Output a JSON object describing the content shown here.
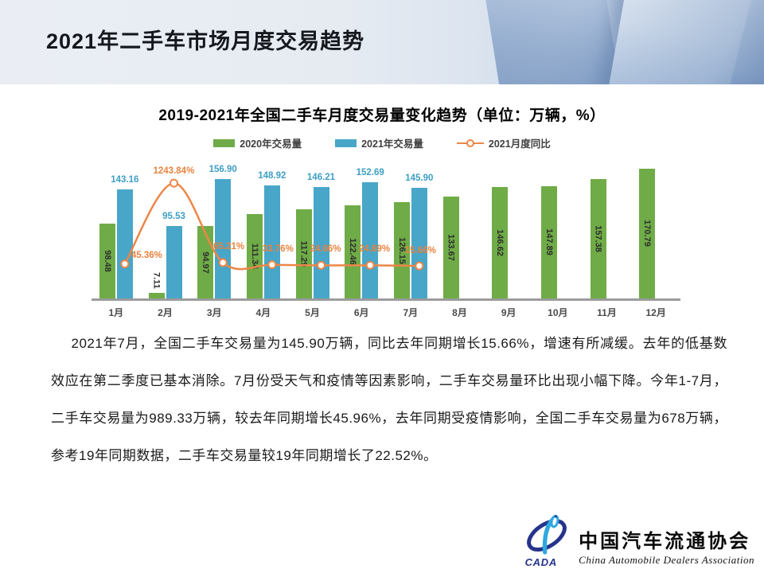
{
  "header": {
    "title": "2021年二手车市场月度交易趋势"
  },
  "chart": {
    "title": "2019-2021年全国二手车月度交易量变化趋势（单位：万辆，%）",
    "colors": {
      "green": "#6FAC47",
      "blue": "#48A6C8",
      "orange": "#ED8647",
      "blue_label": "#3D9FC4",
      "orange_label": "#E9823D",
      "axis": "#9C9C9C"
    }
  },
  "chart_data": {
    "type": "bar",
    "title": "2019-2021年全国二手车月度交易量变化趋势（单位：万辆，%）",
    "categories": [
      "1月",
      "2月",
      "3月",
      "4月",
      "5月",
      "6月",
      "7月",
      "8月",
      "9月",
      "10月",
      "11月",
      "12月"
    ],
    "series": [
      {
        "name": "2020年交易量",
        "type": "bar",
        "color": "#6FAC47",
        "values": [
          98.48,
          7.11,
          94.97,
          111.34,
          117.29,
          122.46,
          126.15,
          133.67,
          146.62,
          147.89,
          157.38,
          170.79
        ]
      },
      {
        "name": "2021年交易量",
        "type": "bar",
        "color": "#48A6C8",
        "values": [
          143.16,
          95.53,
          156.9,
          148.92,
          146.21,
          152.69,
          145.9,
          null,
          null,
          null,
          null,
          null
        ]
      },
      {
        "name": "2021月度同比",
        "type": "line",
        "color": "#ED8647",
        "values": [
          45.36,
          1243.84,
          65.21,
          33.76,
          24.66,
          24.69,
          15.66,
          null,
          null,
          null,
          null,
          null
        ],
        "labels": [
          "45.36%",
          "1243.84%",
          "65.21%",
          "33.76%",
          "24.66%",
          "24.69%",
          "15.66%"
        ]
      }
    ],
    "xlabel": "",
    "ylabel": "",
    "unit": "万辆，%",
    "ylim": [
      0,
      180
    ],
    "grid": false,
    "legend_position": "top",
    "y_axis_visible": false
  },
  "body": {
    "paragraph": "2021年7月，全国二手车交易量为145.90万辆，同比去年同期增长15.66%，增速有所减缓。去年的低基数效应在第二季度已基本消除。7月份受天气和疫情等因素影响，二手车交易量环比出现小幅下降。今年1-7月，二手车交易量为989.33万辆，较去年同期增长45.96%，去年同期受疫情影响，全国二手车交易量为678万辆，参考19年同期数据，二手车交易量较19年同期增长了22.52%。"
  },
  "footer": {
    "logo_acronym": "CADA",
    "org_cn": "中国汽车流通协会",
    "org_en": "China Automobile Dealers Association"
  }
}
